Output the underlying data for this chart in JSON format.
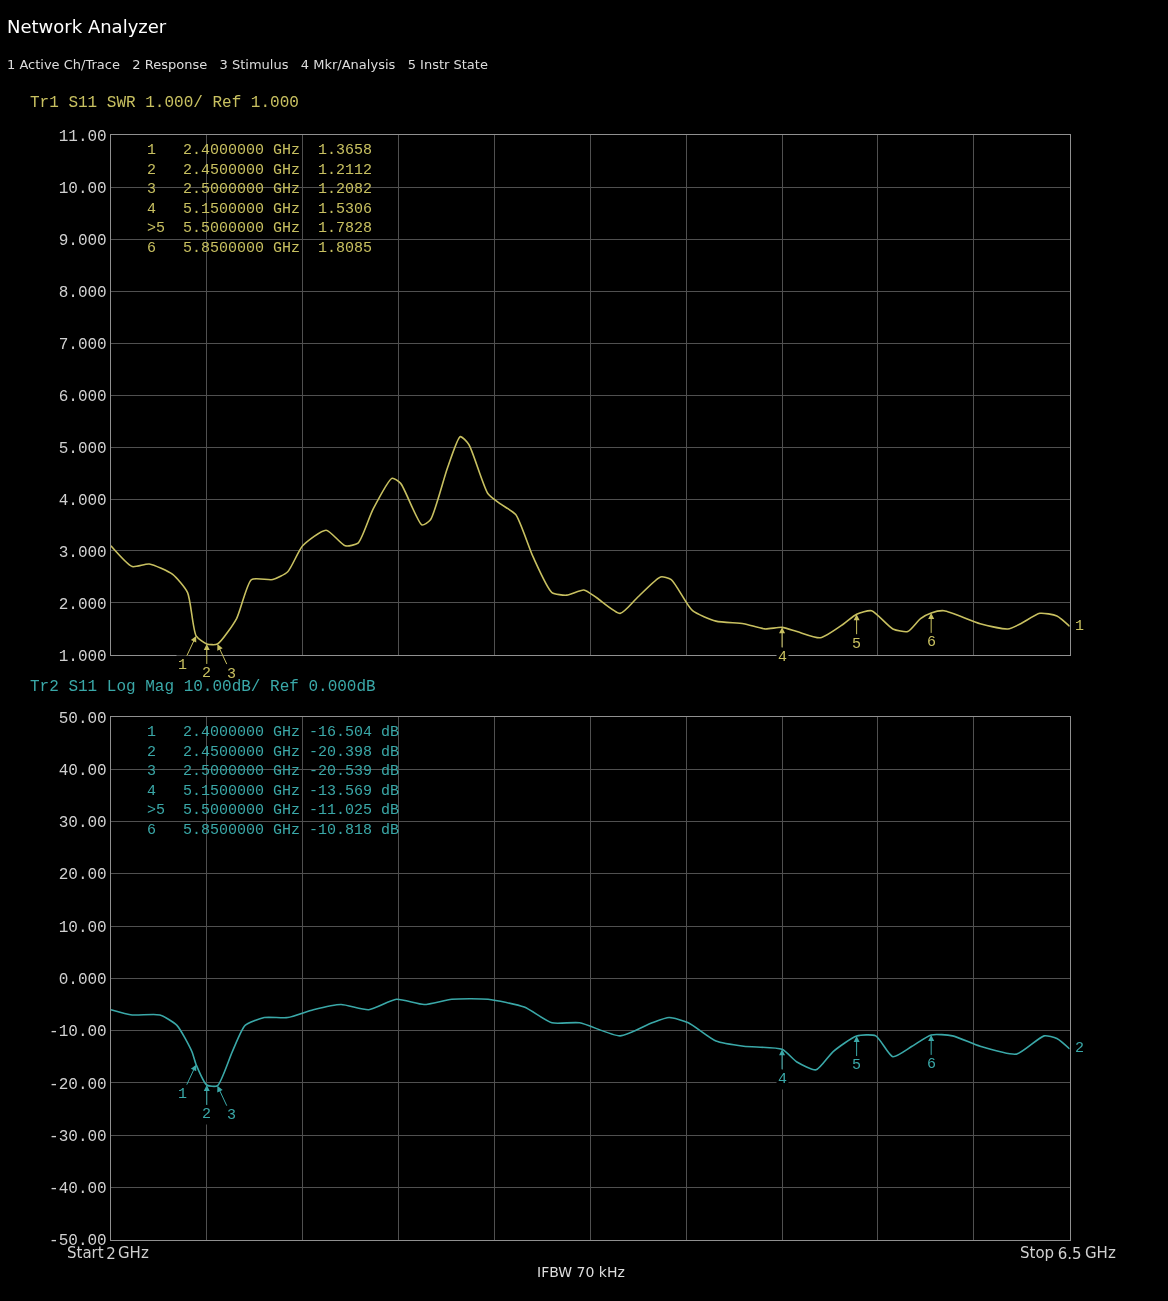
{
  "chart_data": [
    {
      "type": "line",
      "title": "Network Analyzer",
      "subtitle": "Tr1 S11 SWR 1.000/ Ref 1.000",
      "tick_labels": "y",
      "grid": true,
      "marker": "none",
      "line_style": "solid",
      "xlim": [
        2,
        6.5
      ],
      "xticks": [
        2,
        {
          "value": 2.45,
          "label": null
        },
        {
          "value": 2.9,
          "label": null
        },
        {
          "value": 3.35,
          "label": null
        },
        {
          "value": 3.8,
          "label": null
        },
        {
          "value": 4.25,
          "label": null
        },
        {
          "value": 4.7,
          "label": null
        },
        {
          "value": 5.15,
          "label": null
        },
        {
          "value": 5.6,
          "label": null
        },
        {
          "value": 6.05,
          "label": null
        },
        6.5
      ],
      "ylim": [
        1,
        11
      ],
      "yticks": [
        {
          "value": 1,
          "label": "1.000"
        },
        {
          "value": 2,
          "label": "2.000"
        },
        {
          "value": 3,
          "label": "3.000"
        },
        {
          "value": 4,
          "label": "4.000"
        },
        {
          "value": 5,
          "label": "5.000"
        },
        {
          "value": 6,
          "label": "6.000"
        },
        {
          "value": 7,
          "label": "7.000"
        },
        {
          "value": 8,
          "label": "8.000"
        },
        {
          "value": 9,
          "label": "9.000"
        },
        {
          "value": 10,
          "label": "10.00"
        },
        {
          "value": 11,
          "label": "11.00"
        }
      ],
      "series": [
        {
          "color": "#c8c060",
          "x": [
            2.0,
            2.1,
            2.18,
            2.29,
            2.36,
            2.4,
            2.45,
            2.5,
            2.59,
            2.66,
            2.76,
            2.83,
            2.9,
            3.01,
            3.1,
            3.16,
            3.23,
            3.32,
            3.36,
            3.46,
            3.5,
            3.58,
            3.64,
            3.68,
            3.77,
            3.83,
            3.9,
            3.98,
            4.07,
            4.14,
            4.22,
            4.28,
            4.39,
            4.47,
            4.58,
            4.63,
            4.73,
            4.84,
            4.97,
            5.07,
            5.15,
            5.22,
            5.33,
            5.44,
            5.5,
            5.57,
            5.67,
            5.74,
            5.8,
            5.85,
            5.91,
            6.08,
            6.21,
            6.27,
            6.36,
            6.44,
            6.5
          ],
          "values": [
            3.1,
            2.7,
            2.75,
            2.55,
            2.2,
            1.3658,
            1.2112,
            1.2082,
            1.7,
            2.45,
            2.45,
            2.6,
            3.1,
            3.4,
            3.1,
            3.15,
            3.8,
            4.4,
            4.3,
            3.5,
            3.6,
            4.6,
            5.2,
            5.05,
            4.1,
            3.9,
            3.7,
            2.9,
            2.2,
            2.15,
            2.25,
            2.1,
            1.8,
            2.1,
            2.5,
            2.45,
            1.85,
            1.65,
            1.6,
            1.5,
            1.5306,
            1.45,
            1.33,
            1.6,
            1.7828,
            1.85,
            1.5,
            1.45,
            1.7,
            1.8085,
            1.85,
            1.6,
            1.5,
            1.6,
            1.8,
            1.75,
            1.55
          ]
        }
      ],
      "annotations": [
        "1 Active Ch/Trace   2 Response   3 Stimulus   4 Mkr/Analysis   5 Instr State",
        "1   2.4000000 GHz  1.3658\n2   2.4500000 GHz  1.2112\n3   2.5000000 GHz  1.2082\n4   5.1500000 GHz  1.5306\n>5  5.5000000 GHz  1.7828\n6   5.8500000 GHz  1.8085",
        {
          "text": "1",
          "x": 2.4,
          "y": 1.3658
        },
        {
          "text": "2",
          "x": 2.45,
          "y": 1.2112
        },
        {
          "text": "3",
          "x": 2.5,
          "y": 1.2082
        },
        {
          "text": "4",
          "x": 5.15,
          "y": 1.5306
        },
        {
          "text": "5",
          "x": 5.5,
          "y": 1.7828
        },
        {
          "text": "6",
          "x": 5.85,
          "y": 1.8085
        },
        {
          "text": "1",
          "x": 6.5,
          "y": 1.55
        }
      ]
    },
    {
      "type": "line",
      "title": "Tr2 S11 Log Mag 10.00dB/ Ref 0.000dB",
      "grid": true,
      "marker": "none",
      "line_style": "solid",
      "xlim": [
        2,
        6.5
      ],
      "xticks": [
        2,
        {
          "value": 2.45,
          "label": null
        },
        {
          "value": 2.9,
          "label": null
        },
        {
          "value": 3.35,
          "label": null
        },
        {
          "value": 3.8,
          "label": null
        },
        {
          "value": 4.25,
          "label": null
        },
        {
          "value": 4.7,
          "label": null
        },
        {
          "value": 5.15,
          "label": null
        },
        {
          "value": 5.6,
          "label": null
        },
        {
          "value": 6.05,
          "label": null
        },
        6.5
      ],
      "ylim": [
        -50,
        50
      ],
      "yticks": [
        {
          "value": -50,
          "label": "-50.00"
        },
        {
          "value": -40,
          "label": "-40.00"
        },
        {
          "value": -30,
          "label": "-30.00"
        },
        {
          "value": -20,
          "label": "-20.00"
        },
        {
          "value": -10,
          "label": "-10.00"
        },
        {
          "value": 0,
          "label": "0.000"
        },
        {
          "value": 10,
          "label": "10.00"
        },
        {
          "value": 20,
          "label": "20.00"
        },
        {
          "value": 30,
          "label": "30.00"
        },
        {
          "value": 40,
          "label": "40.00"
        },
        {
          "value": 50,
          "label": "50.00"
        }
      ],
      "series": [
        {
          "color": "#3aa8a8",
          "x": [
            2.0,
            2.1,
            2.23,
            2.31,
            2.38,
            2.4,
            2.45,
            2.5,
            2.57,
            2.63,
            2.72,
            2.83,
            2.95,
            3.08,
            3.21,
            3.34,
            3.47,
            3.6,
            3.77,
            3.94,
            4.07,
            4.2,
            4.39,
            4.54,
            4.62,
            4.71,
            4.84,
            4.97,
            5.15,
            5.22,
            5.31,
            5.39,
            5.5,
            5.59,
            5.67,
            5.76,
            5.85,
            5.95,
            6.08,
            6.25,
            6.38,
            6.44,
            6.5
          ],
          "values": [
            -6,
            -7,
            -7,
            -9,
            -14,
            -16.504,
            -20.398,
            -20.539,
            -14,
            -9,
            -7.5,
            -7.5,
            -6,
            -5,
            -6,
            -4,
            -5,
            -4,
            -4,
            -5.5,
            -8.5,
            -8.5,
            -11,
            -8.5,
            -7.5,
            -8.5,
            -12,
            -13,
            -13.569,
            -16,
            -17.5,
            -14,
            -11.025,
            -11,
            -15,
            -13,
            -10.818,
            -11,
            -13,
            -14.5,
            -11,
            -11.5,
            -13.5
          ]
        }
      ],
      "annotations": [
        "1   2.4000000 GHz -16.504 dB\n2   2.4500000 GHz -20.398 dB\n3   2.5000000 GHz -20.539 dB\n4   5.1500000 GHz -13.569 dB\n>5  5.5000000 GHz -11.025 dB\n6   5.8500000 GHz -10.818 dB",
        "IFBW 70 kHz",
        "Start",
        "GHz",
        "Stop",
        "GHz",
        {
          "text": "1",
          "x": 2.4,
          "y": -16.504
        },
        {
          "text": "2",
          "x": 2.45,
          "y": -20.398
        },
        {
          "text": "3",
          "x": 2.5,
          "y": -20.539
        },
        {
          "text": "4",
          "x": 5.15,
          "y": -13.569
        },
        {
          "text": "5",
          "x": 5.5,
          "y": -11.025
        },
        {
          "text": "6",
          "x": 5.85,
          "y": -10.818
        },
        {
          "text": "2",
          "x": 6.5,
          "y": -13.5
        }
      ]
    }
  ]
}
